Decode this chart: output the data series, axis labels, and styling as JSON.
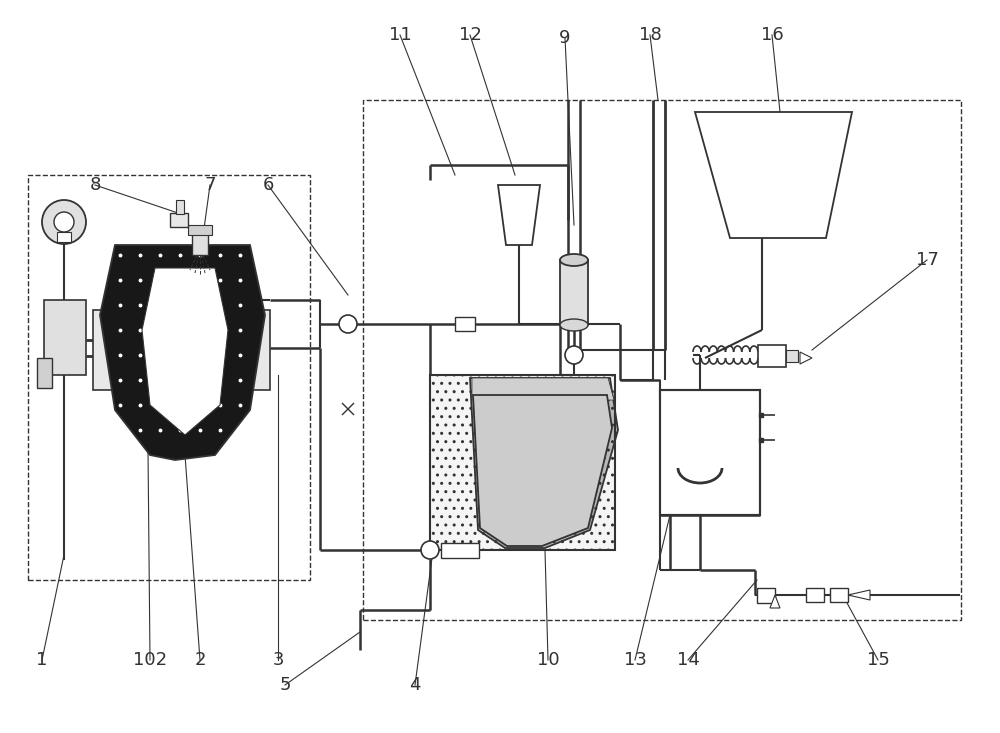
{
  "bg_color": "#ffffff",
  "line_color": "#333333",
  "figsize": [
    10.0,
    7.33
  ],
  "dpi": 100,
  "lw": 1.3,
  "dash_lw": 1.0,
  "label_fontsize": 13
}
